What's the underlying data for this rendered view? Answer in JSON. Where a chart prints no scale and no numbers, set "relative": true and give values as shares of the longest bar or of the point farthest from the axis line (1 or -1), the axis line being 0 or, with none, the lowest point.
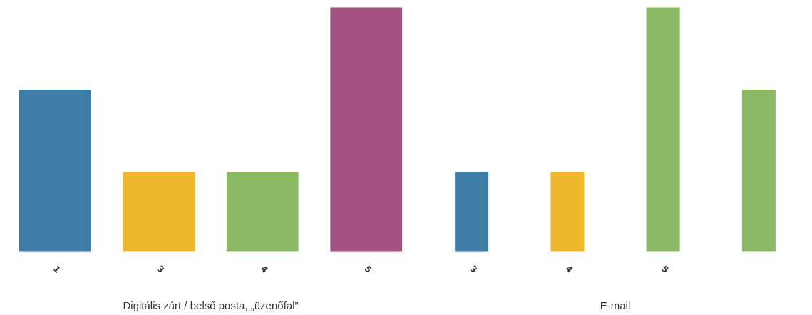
{
  "chart_data": [
    {
      "type": "bar",
      "relative": true,
      "xlabel": "Digitális zárt / belső posta, „üzenőfal”",
      "categories": [
        "1",
        "3",
        "4",
        "5"
      ],
      "grid": false,
      "series": [
        {
          "colors": [
            "#3e7ea6",
            "#f0b82d",
            "#8aba64",
            "#a35181"
          ],
          "values": [
            0.667,
            0.333,
            0.333,
            1
          ]
        }
      ]
    },
    {
      "type": "bar",
      "relative": true,
      "xlabel": "E-mail",
      "categories": [
        "3",
        "4",
        "5",
        null
      ],
      "grid": false,
      "series": [
        {
          "colors": [
            "#3e7ea6",
            "#f0b82d",
            "#8aba64",
            "#8aba64"
          ],
          "values": [
            0.333,
            0.333,
            1,
            0.667
          ]
        }
      ]
    }
  ]
}
